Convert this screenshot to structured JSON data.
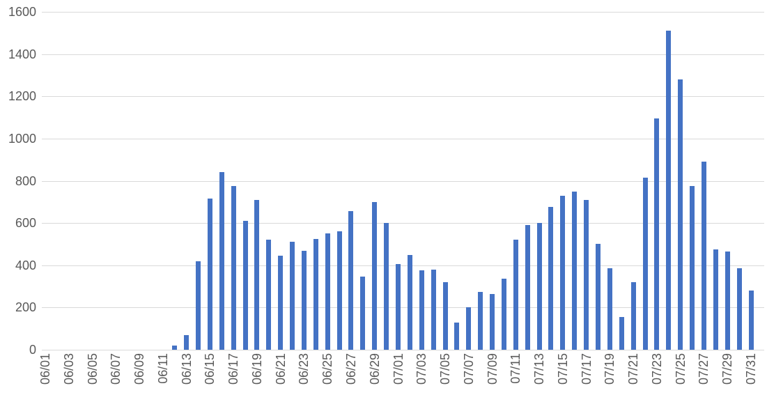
{
  "chart_data": {
    "type": "bar",
    "title": "",
    "xlabel": "",
    "ylabel": "",
    "legend": "none",
    "grid": "horizontal",
    "ylim": [
      0,
      1600
    ],
    "ytick_interval": 200,
    "yticks": [
      0,
      200,
      400,
      600,
      800,
      1000,
      1200,
      1400,
      1600
    ],
    "ytick_labels": [
      "0",
      "200",
      "400",
      "600",
      "800",
      "1000",
      "1200",
      "1400",
      "1600"
    ],
    "xtick_label_every": 2,
    "xtick_rotation": -90,
    "bar_color": "#4472C4",
    "gridline_color": "#D9D9D9",
    "axis_text_color": "#595959",
    "categories": [
      "06/01",
      "06/02",
      "06/03",
      "06/04",
      "06/05",
      "06/06",
      "06/07",
      "06/08",
      "06/09",
      "06/10",
      "06/11",
      "06/12",
      "06/13",
      "06/14",
      "06/15",
      "06/16",
      "06/17",
      "06/18",
      "06/19",
      "06/20",
      "06/21",
      "06/22",
      "06/23",
      "06/24",
      "06/25",
      "06/26",
      "06/27",
      "06/28",
      "06/29",
      "06/30",
      "07/01",
      "07/02",
      "07/03",
      "07/04",
      "07/05",
      "07/06",
      "07/07",
      "07/08",
      "07/09",
      "07/10",
      "07/11",
      "07/12",
      "07/13",
      "07/14",
      "07/15",
      "07/16",
      "07/17",
      "07/18",
      "07/19",
      "07/20",
      "07/21",
      "07/22",
      "07/23",
      "07/24",
      "07/25",
      "07/26",
      "07/27",
      "07/28",
      "07/29",
      "07/30",
      "07/31"
    ],
    "values": [
      0,
      0,
      0,
      0,
      0,
      0,
      0,
      0,
      0,
      0,
      0,
      20,
      70,
      420,
      715,
      840,
      775,
      610,
      710,
      520,
      445,
      510,
      470,
      525,
      550,
      560,
      655,
      345,
      700,
      600,
      405,
      450,
      375,
      380,
      320,
      130,
      200,
      275,
      265,
      335,
      520,
      590,
      600,
      675,
      730,
      750,
      710,
      500,
      385,
      155,
      320,
      815,
      1095,
      1510,
      1280,
      775,
      890,
      475,
      465,
      385,
      280
    ]
  }
}
